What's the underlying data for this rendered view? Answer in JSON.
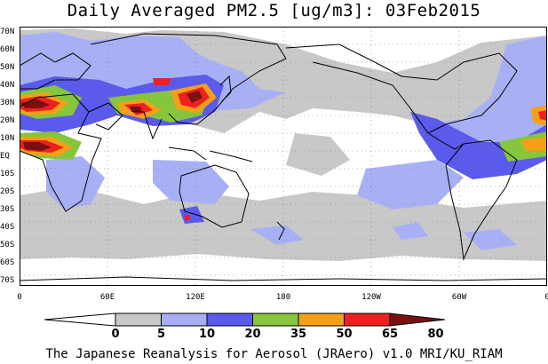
{
  "title": "Daily Averaged PM2.5 [ug/m3]: 03Feb2015",
  "lat_labels": [
    "70N",
    "60N",
    "50N",
    "40N",
    "30N",
    "20N",
    "10N",
    "EQ",
    "10S",
    "20S",
    "30S",
    "40S",
    "50S",
    "60S",
    "70S"
  ],
  "lon_labels": [
    "0",
    "60E",
    "120E",
    "180",
    "120W",
    "60W",
    "0"
  ],
  "colorbar": {
    "levels": [
      "0",
      "5",
      "10",
      "20",
      "35",
      "50",
      "65",
      "80"
    ],
    "colors": [
      "#ffffff",
      "#c8c8c8",
      "#a8b0f5",
      "#5a5aec",
      "#86c63c",
      "#f5a018",
      "#ee2020",
      "#7a1010"
    ]
  },
  "credit": "The Japanese Reanalysis for Aerosol (JRAero) v1.0 MRI/KU_RIAM"
}
